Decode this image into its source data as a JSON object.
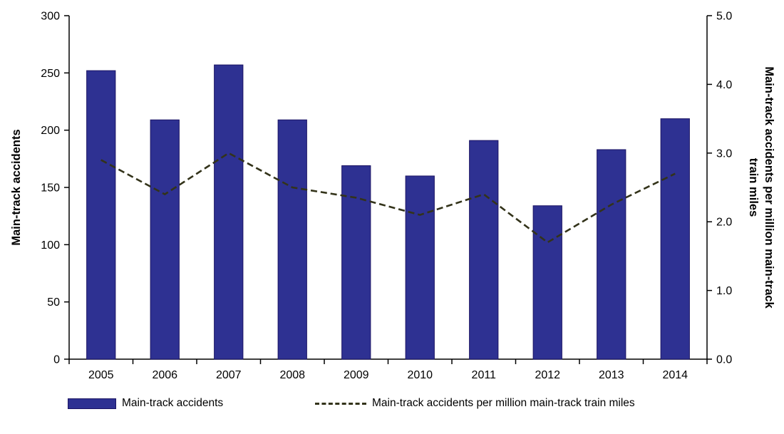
{
  "chart_data": {
    "type": "bar",
    "subtype": "bar-and-line-combo",
    "title": "",
    "categories": [
      "2005",
      "2006",
      "2007",
      "2008",
      "2009",
      "2010",
      "2011",
      "2012",
      "2013",
      "2014"
    ],
    "series": [
      {
        "name": "Main-track accidents",
        "type": "bar",
        "axis": "left",
        "color": "#2e3192",
        "border_color": "#1b1464",
        "values": [
          252,
          209,
          257,
          209,
          169,
          160,
          191,
          134,
          183,
          210
        ]
      },
      {
        "name": "Main-track accidents per million main-track train miles",
        "type": "line",
        "style": "dashed",
        "axis": "right",
        "color": "#33331a",
        "values": [
          2.9,
          2.4,
          3.0,
          2.5,
          2.35,
          2.1,
          2.4,
          1.7,
          2.25,
          2.7
        ]
      }
    ],
    "left_axis": {
      "label": "Main-track accidents",
      "min": 0,
      "max": 300,
      "ticks": [
        "300",
        "250",
        "200",
        "150",
        "100",
        "50",
        "0"
      ]
    },
    "right_axis": {
      "label": "Main-track accidents per million main-track train miles",
      "label_lines": [
        "Main-track accidents per million main-track",
        "train miles"
      ],
      "min": 0,
      "max": 5,
      "ticks": [
        "5.0",
        "4.0",
        "3.0",
        "2.0",
        "1.0",
        "0.0"
      ]
    },
    "grid": false,
    "legend_position": "bottom",
    "background": "#ffffff"
  }
}
